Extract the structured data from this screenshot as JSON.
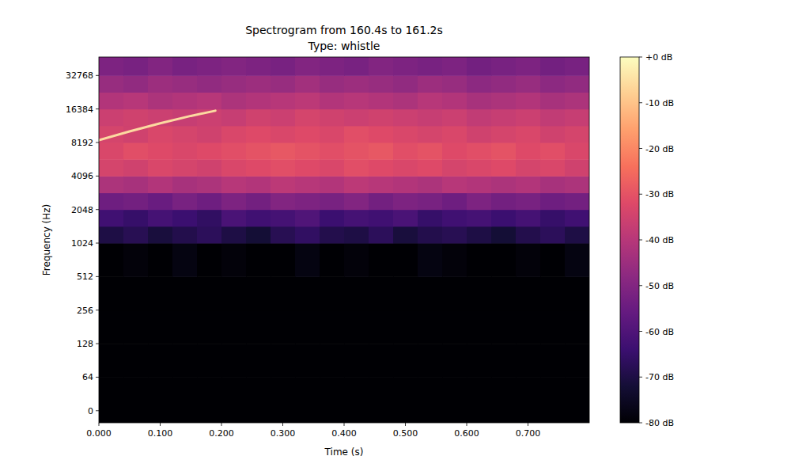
{
  "chart_data": {
    "type": "heatmap",
    "title": "Spectrogram from 160.4s to 161.2s",
    "subtitle": "Type: whistle",
    "x_label": "Time (s)",
    "y_label": "Frequency (Hz)",
    "log": "y",
    "xlim": [
      0,
      0.8
    ],
    "ylim": [
      -23,
      48000
    ],
    "xticks": [
      {
        "value": 0,
        "label": "0.000"
      },
      {
        "value": 0.1,
        "label": "0.100"
      },
      {
        "value": 0.2,
        "label": "0.200"
      },
      {
        "value": 0.3,
        "label": "0.300"
      },
      {
        "value": 0.4,
        "label": "0.400"
      },
      {
        "value": 0.5,
        "label": "0.500"
      },
      {
        "value": 0.6,
        "label": "0.600"
      },
      {
        "value": 0.7,
        "label": "0.700"
      }
    ],
    "yticks": [
      0,
      64,
      128,
      256,
      512,
      1024,
      2048,
      4096,
      8192,
      16384,
      32768
    ],
    "cell_x": [
      0,
      0.04,
      0.08,
      0.12,
      0.16,
      0.2,
      0.24,
      0.28,
      0.32,
      0.36,
      0.4,
      0.44,
      0.48,
      0.52,
      0.56,
      0.6,
      0.64,
      0.68,
      0.72,
      0.76,
      0.8
    ],
    "cell_y": [
      -23,
      64,
      128,
      256,
      512,
      1024,
      1448,
      2048,
      2896,
      4096,
      5793,
      8192,
      11585,
      16384,
      23170,
      32768,
      48000
    ],
    "cells": [
      [
        -80,
        -80,
        -80,
        -80,
        -80,
        -80,
        -80,
        -80,
        -80,
        -80,
        -80,
        -80,
        -80,
        -80,
        -80,
        -80,
        -80,
        -80,
        -80,
        -80
      ],
      [
        -80,
        -80,
        -80,
        -80,
        -80,
        -80,
        -80,
        -80,
        -80,
        -80,
        -80,
        -80,
        -80,
        -80,
        -80,
        -80,
        -80,
        -80,
        -80,
        -80
      ],
      [
        -80,
        -80,
        -80,
        -80,
        -80,
        -80,
        -80,
        -80,
        -80,
        -80,
        -80,
        -80,
        -80,
        -80,
        -80,
        -80,
        -80,
        -80,
        -80,
        -80
      ],
      [
        -80,
        -80,
        -80,
        -80,
        -80,
        -80,
        -80,
        -80,
        -80,
        -80,
        -80,
        -80,
        -80,
        -80,
        -80,
        -80,
        -80,
        -80,
        -80,
        -80
      ],
      [
        -80,
        -79,
        -80,
        -78,
        -80,
        -79,
        -80,
        -80,
        -78,
        -80,
        -79,
        -80,
        -80,
        -78,
        -79,
        -80,
        -80,
        -79,
        -80,
        -78
      ],
      [
        -70,
        -68,
        -71,
        -69,
        -67,
        -70,
        -72,
        -68,
        -66,
        -69,
        -70,
        -67,
        -71,
        -69,
        -68,
        -70,
        -72,
        -69,
        -67,
        -70
      ],
      [
        -63,
        -65,
        -62,
        -64,
        -66,
        -61,
        -63,
        -62,
        -60,
        -64,
        -62,
        -63,
        -61,
        -65,
        -63,
        -62,
        -64,
        -62,
        -65,
        -63
      ],
      [
        -54,
        -53,
        -55,
        -52,
        -54,
        -51,
        -53,
        -50,
        -51,
        -52,
        -50,
        -53,
        -51,
        -52,
        -54,
        -51,
        -53,
        -52,
        -54,
        -53
      ],
      [
        -42,
        -43,
        -41,
        -43,
        -42,
        -40,
        -41,
        -39,
        -40,
        -41,
        -39,
        -40,
        -41,
        -42,
        -40,
        -41,
        -42,
        -41,
        -43,
        -42
      ],
      [
        -34,
        -35,
        -33,
        -34,
        -35,
        -33,
        -32,
        -31,
        -32,
        -33,
        -31,
        -32,
        -33,
        -32,
        -34,
        -33,
        -32,
        -34,
        -33,
        -35
      ],
      [
        -33,
        -31,
        -32,
        -33,
        -32,
        -31,
        -30,
        -29,
        -30,
        -31,
        -30,
        -29,
        -31,
        -30,
        -32,
        -31,
        -30,
        -32,
        -31,
        -33
      ],
      [
        -34,
        -35,
        -33,
        -34,
        -35,
        -33,
        -32,
        -33,
        -32,
        -33,
        -31,
        -32,
        -33,
        -34,
        -33,
        -35,
        -34,
        -33,
        -35,
        -34
      ],
      [
        -36,
        -35,
        -36,
        -37,
        -36,
        -37,
        -35,
        -36,
        -34,
        -35,
        -36,
        -35,
        -36,
        -37,
        -36,
        -38,
        -37,
        -36,
        -38,
        -37
      ],
      [
        -41,
        -40,
        -42,
        -41,
        -40,
        -42,
        -41,
        -40,
        -39,
        -41,
        -40,
        -41,
        -42,
        -40,
        -41,
        -43,
        -42,
        -41,
        -43,
        -42
      ],
      [
        -46,
        -47,
        -45,
        -46,
        -47,
        -46,
        -45,
        -46,
        -44,
        -46,
        -45,
        -46,
        -47,
        -45,
        -46,
        -48,
        -47,
        -46,
        -48,
        -47
      ],
      [
        -51,
        -52,
        -50,
        -52,
        -51,
        -50,
        -51,
        -52,
        -50,
        -51,
        -52,
        -50,
        -51,
        -52,
        -51,
        -53,
        -52,
        -51,
        -53,
        -52
      ]
    ],
    "series": [
      {
        "x": [
          0,
          0.05,
          0.1,
          0.15,
          0.19
        ],
        "values": [
          8600,
          10300,
          12200,
          14200,
          15800
        ],
        "color": "#fcd9a0"
      }
    ],
    "colorbar": {
      "range": [
        -80,
        0
      ],
      "ticks": [
        {
          "value": 0,
          "label": "+0 dB"
        },
        {
          "value": -10,
          "label": "-10 dB"
        },
        {
          "value": -20,
          "label": "-20 dB"
        },
        {
          "value": -30,
          "label": "-30 dB"
        },
        {
          "value": -40,
          "label": "-40 dB"
        },
        {
          "value": -50,
          "label": "-50 dB"
        },
        {
          "value": -60,
          "label": "-60 dB"
        },
        {
          "value": -70,
          "label": "-70 dB"
        },
        {
          "value": -80,
          "label": "-80 dB"
        }
      ]
    }
  }
}
